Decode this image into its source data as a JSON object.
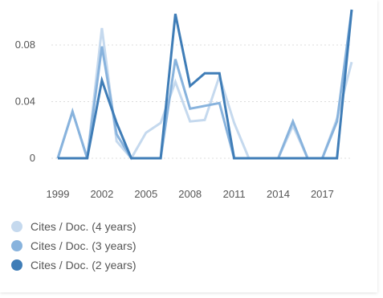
{
  "chart_data": {
    "type": "line",
    "x": [
      1999,
      2000,
      2001,
      2002,
      2003,
      2004,
      2005,
      2006,
      2007,
      2008,
      2009,
      2010,
      2011,
      2012,
      2013,
      2014,
      2015,
      2016,
      2017,
      2018,
      2019
    ],
    "x_ticks": [
      "1999",
      "2002",
      "2005",
      "2008",
      "2011",
      "2014",
      "2017"
    ],
    "y_ticks": [
      "0",
      "0.04",
      "0.08"
    ],
    "ylim": [
      0,
      0.105
    ],
    "grid": true,
    "legend_position": "bottom-left",
    "series": [
      {
        "name": "Cites / Doc. (4 years)",
        "color": "#c5d9ee",
        "values": [
          0,
          0.033,
          0,
          0.092,
          0.012,
          0,
          0.018,
          0.025,
          0.054,
          0.026,
          0.027,
          0.058,
          0.025,
          0,
          0,
          0,
          0.023,
          0,
          0,
          0.028,
          0.068
        ]
      },
      {
        "name": "Cites / Doc. (3 years)",
        "color": "#88b3dd",
        "values": [
          0,
          0.033,
          0,
          0.079,
          0.017,
          0,
          0,
          0,
          0.07,
          0.035,
          0.037,
          0.039,
          0,
          0,
          0,
          0,
          0.026,
          0,
          0,
          0.026,
          0.105
        ]
      },
      {
        "name": "Cites / Doc. (2 years)",
        "color": "#3f7db7",
        "values": [
          0,
          0,
          0,
          0.055,
          0.025,
          0,
          0,
          0,
          0.102,
          0.051,
          0.06,
          0.06,
          0,
          0,
          0,
          0,
          0,
          0,
          0,
          0,
          0.105
        ]
      }
    ]
  }
}
